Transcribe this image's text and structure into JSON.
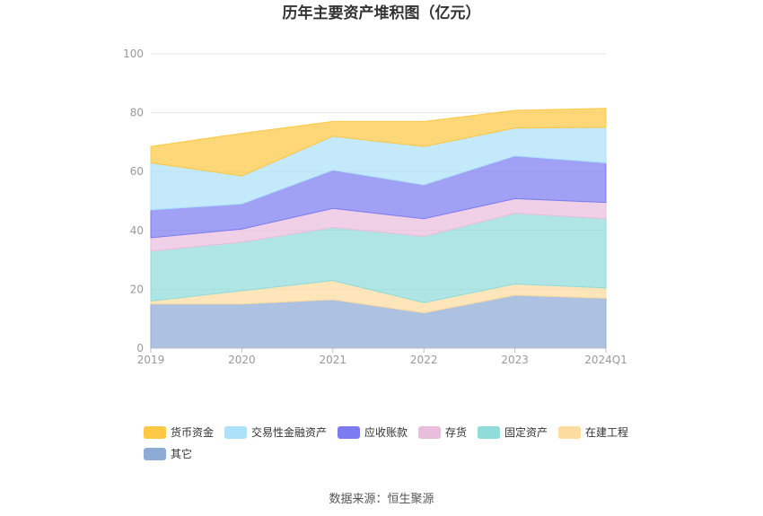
{
  "chart_data": {
    "type": "area",
    "stacked": true,
    "title": "历年主要资产堆积图（亿元）",
    "x": [
      "2019",
      "2020",
      "2021",
      "2022",
      "2023",
      "2024Q1"
    ],
    "ylim": [
      0,
      100
    ],
    "yticks": [
      0,
      20,
      40,
      60,
      80,
      100
    ],
    "grid": true,
    "legend_position": "bottom",
    "series": [
      {
        "name": "其它",
        "color": "#8eabd6",
        "values": [
          15.0,
          15.0,
          16.5,
          12.0,
          18.0,
          17.0
        ]
      },
      {
        "name": "在建工程",
        "color": "#fddca0",
        "values": [
          1.0,
          4.5,
          6.5,
          3.5,
          3.8,
          3.5
        ]
      },
      {
        "name": "固定资产",
        "color": "#90dcdb",
        "values": [
          17.0,
          16.5,
          18.0,
          22.5,
          24.0,
          23.5
        ]
      },
      {
        "name": "存货",
        "color": "#e9bedc",
        "values": [
          4.5,
          4.5,
          6.5,
          6.0,
          5.0,
          5.5
        ]
      },
      {
        "name": "应收账款",
        "color": "#7c7cf0",
        "values": [
          9.5,
          8.5,
          13.0,
          11.5,
          14.5,
          13.5
        ]
      },
      {
        "name": "交易性金融资产",
        "color": "#ade1fa",
        "values": [
          16.0,
          9.5,
          11.5,
          13.0,
          9.5,
          12.0
        ]
      },
      {
        "name": "货币资金",
        "color": "#fdc844",
        "values": [
          5.5,
          14.5,
          5.0,
          8.5,
          6.0,
          6.5
        ]
      }
    ],
    "legend_order": [
      "货币资金",
      "交易性金融资产",
      "应收账款",
      "存货",
      "固定资产",
      "在建工程",
      "其它"
    ]
  },
  "footer": {
    "source": "数据来源：恒生聚源"
  }
}
